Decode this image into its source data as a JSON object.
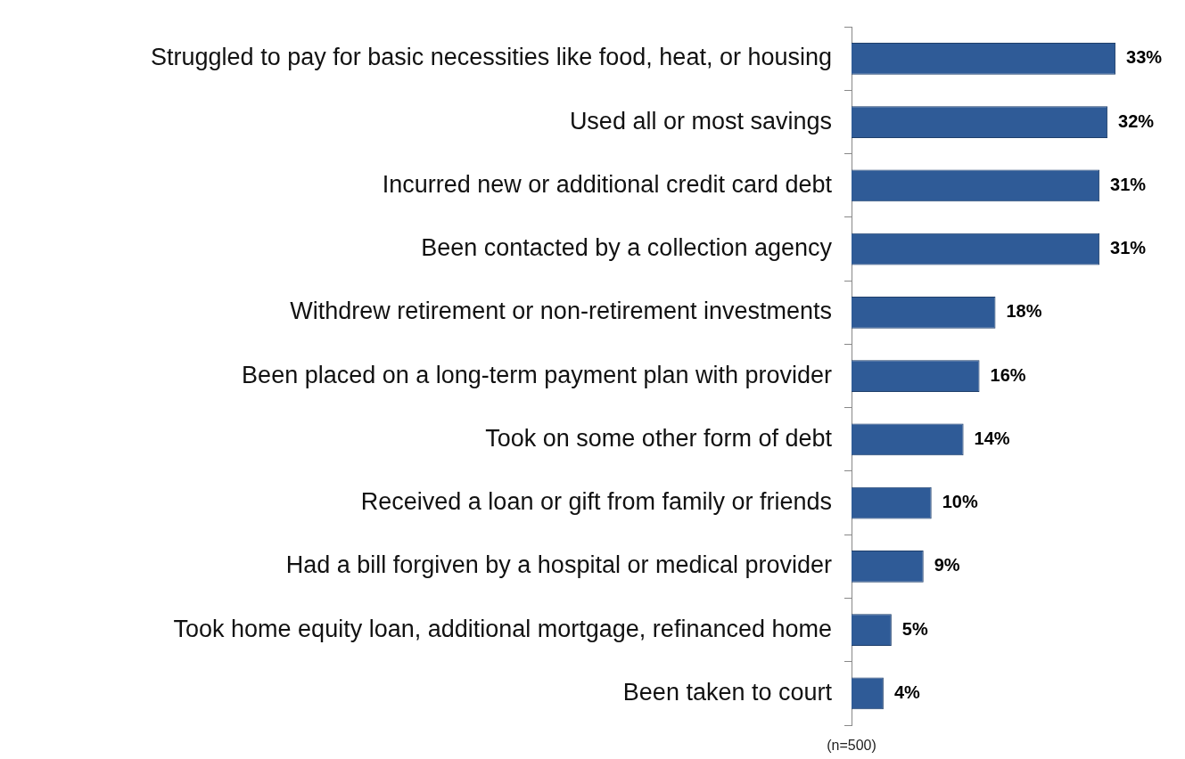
{
  "chart_data": {
    "type": "bar",
    "orientation": "horizontal",
    "categories": [
      "Struggled to pay for basic necessities like food, heat, or housing",
      "Used all or most savings",
      "Incurred new or additional credit card debt",
      "Been contacted by a collection agency",
      "Withdrew retirement or non-retirement investments",
      "Been placed on a long-term payment plan with provider",
      "Took on some other form of debt",
      "Received a loan or gift from family or friends",
      "Had a bill forgiven by a hospital or medical provider",
      "Took home equity loan, additional mortgage, refinanced home",
      "Been taken to court"
    ],
    "values": [
      33,
      32,
      31,
      31,
      18,
      16,
      14,
      10,
      9,
      5,
      4
    ],
    "value_labels": [
      "33%",
      "32%",
      "31%",
      "31%",
      "18%",
      "16%",
      "14%",
      "10%",
      "9%",
      "5%",
      "4%"
    ],
    "color": "#2f5b97",
    "tick_labels": "y",
    "grid": false,
    "legend": false,
    "annotations": [
      "(n=500)"
    ]
  }
}
